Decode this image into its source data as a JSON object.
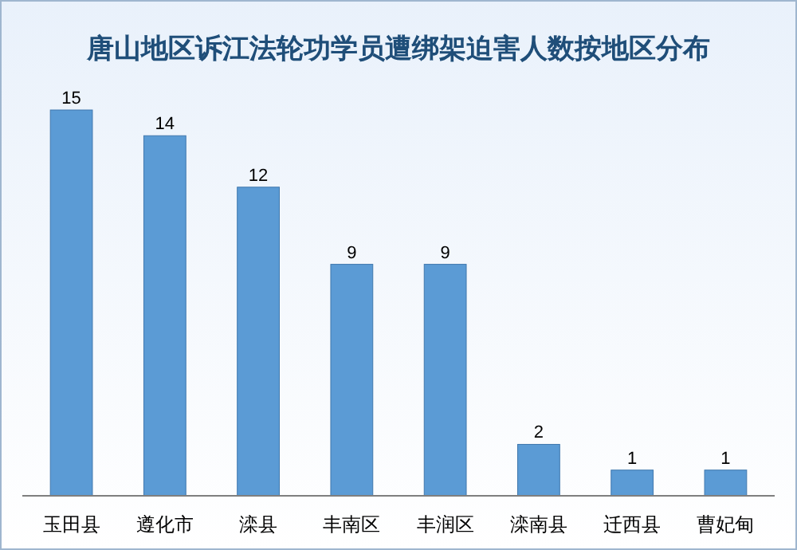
{
  "chart_data": {
    "type": "bar",
    "title": "唐山地区诉江法轮功学员遭绑架迫害人数按地区分布",
    "categories": [
      "玉田县",
      "遵化市",
      "滦县",
      "丰南区",
      "丰润区",
      "滦南县",
      "迁西县",
      "曹妃甸"
    ],
    "values": [
      15,
      14,
      12,
      9,
      9,
      2,
      1,
      1
    ],
    "color": "#5b9bd5",
    "data_labels": true,
    "grid": false,
    "legend": false
  }
}
